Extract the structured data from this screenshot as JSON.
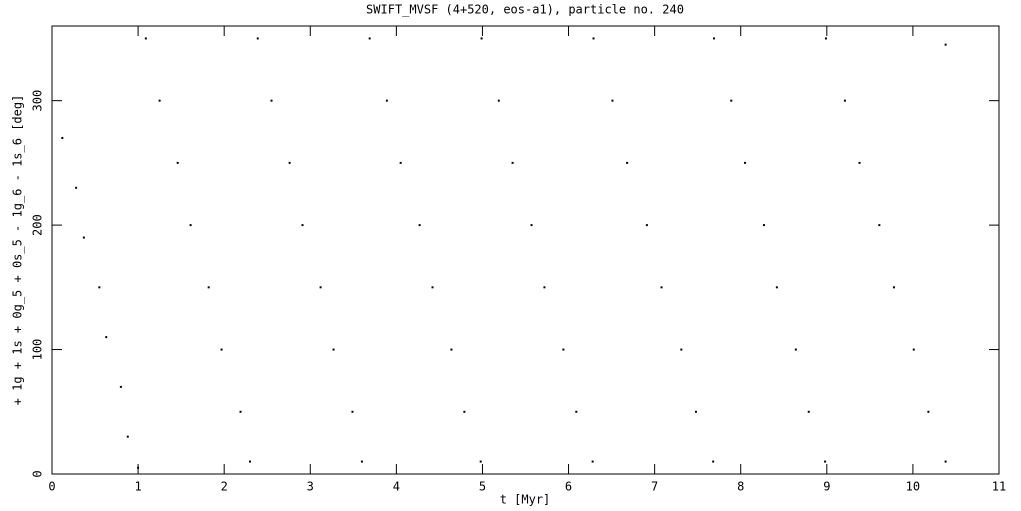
{
  "chart_data": {
    "type": "scatter",
    "title": "SWIFT_MVSF (4+520, eos-a1), particle no. 240",
    "x_label": "t [Myr]",
    "y_label": "+ 1g + 1s + 0g_5 + 0s_5 - 1g_6 - 1s_6 [deg]",
    "xlim": [
      0,
      11
    ],
    "xticks": [
      0,
      1,
      2,
      3,
      4,
      5,
      6,
      7,
      8,
      9,
      10,
      11
    ],
    "ylim": [
      0,
      360
    ],
    "yticks": [
      0,
      100,
      200,
      300
    ],
    "color": "#000000",
    "x": [
      0.12,
      0.28,
      0.37,
      0.55,
      0.63,
      0.8,
      0.88,
      1.0,
      1.09,
      1.25,
      1.46,
      1.61,
      1.82,
      1.97,
      2.19,
      2.3,
      2.39,
      2.55,
      2.76,
      2.91,
      3.12,
      3.27,
      3.49,
      3.6,
      3.69,
      3.89,
      4.05,
      4.27,
      4.42,
      4.64,
      4.79,
      4.98,
      4.99,
      5.19,
      5.35,
      5.57,
      5.72,
      5.94,
      6.09,
      6.28,
      6.29,
      6.51,
      6.68,
      6.91,
      7.08,
      7.31,
      7.48,
      7.68,
      7.69,
      7.89,
      8.05,
      8.27,
      8.42,
      8.64,
      8.79,
      8.98,
      8.99,
      9.21,
      9.38,
      9.61,
      9.78,
      10.01,
      10.18,
      10.38,
      10.38
    ],
    "values": [
      270,
      230,
      190,
      150,
      110,
      70,
      30,
      5,
      350,
      300,
      250,
      200,
      150,
      100,
      50,
      10,
      350,
      300,
      250,
      200,
      150,
      100,
      50,
      10,
      350,
      300,
      250,
      200,
      150,
      100,
      50,
      10,
      350,
      300,
      250,
      200,
      150,
      100,
      50,
      10,
      350,
      300,
      250,
      200,
      150,
      100,
      50,
      10,
      350,
      300,
      250,
      200,
      150,
      100,
      50,
      10,
      350,
      300,
      250,
      200,
      150,
      100,
      50,
      10,
      345
    ]
  }
}
